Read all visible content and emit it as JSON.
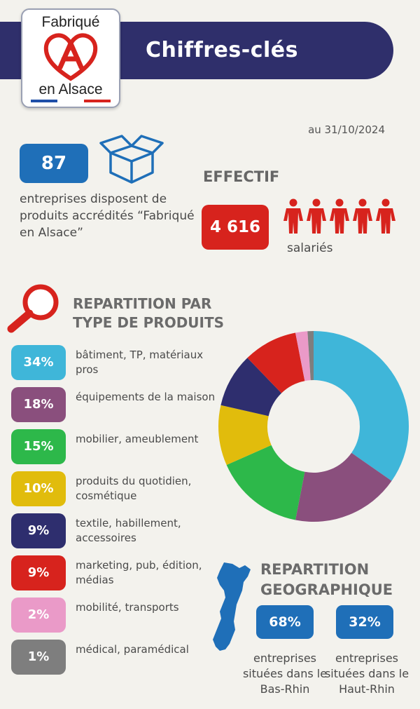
{
  "header": {
    "title": "Chiffres-clés",
    "logo_top": "Fabriqué",
    "logo_bottom": "en Alsace",
    "colors": {
      "banner": "#2f2f6b",
      "logo_red": "#d7231d"
    }
  },
  "date": "au 31/10/2024",
  "companies": {
    "value": "87",
    "description": "entreprises disposent de produits accrédités “Fabriqué en Alsace”"
  },
  "staff": {
    "title": "EFFECTIF",
    "value": "4 616",
    "label": "salariés"
  },
  "product_section": {
    "title": "REPARTITION PAR TYPE DE PRODUITS"
  },
  "chart_data": {
    "type": "pie",
    "variant": "donut",
    "categories": [
      "bâtiment, TP, matériaux pros",
      "équipements de la maison",
      "mobilier, ameublement",
      "produits du quotidien, cosmétique",
      "textile, habillement, accessoires",
      "marketing, pub, édition, médias",
      "mobilité, transports",
      "médical, paramédical"
    ],
    "values": [
      34,
      18,
      15,
      10,
      9,
      9,
      2,
      1
    ],
    "labels": [
      "34%",
      "18%",
      "15%",
      "10%",
      "9%",
      "9%",
      "2%",
      "1%"
    ],
    "colors": [
      "#3fb6d9",
      "#8a4f7d",
      "#2db84a",
      "#e1bc0c",
      "#2e2e6e",
      "#d7231d",
      "#ea9ac8",
      "#7e7e7e"
    ]
  },
  "geo_section": {
    "title": "REPARTITION GEOGRAPHIQUE",
    "bas_rhin": {
      "value": "68%",
      "label": "entreprises situées dans le Bas-Rhin"
    },
    "haut_rhin": {
      "value": "32%",
      "label": "entreprises situées dans le Haut-Rhin"
    }
  }
}
